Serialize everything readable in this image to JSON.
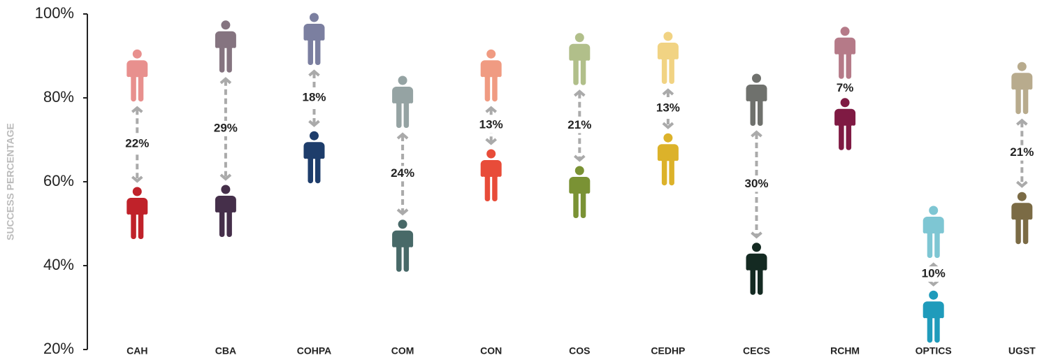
{
  "chart_data": {
    "type": "pictogram-dumbbell",
    "y_label": "SUCCESS PERCENTAGE",
    "categories": [
      "CAH",
      "CBA",
      "COHPA",
      "COM",
      "CON",
      "COS",
      "CEDHP",
      "CECS",
      "RCHM",
      "OPTICS",
      "UGST"
    ],
    "series": [
      {
        "values": [
          85.3,
          92.2,
          94,
          79,
          85.3,
          89.2,
          89.5,
          79.5,
          90.7,
          48,
          82.3
        ],
        "colors": [
          "#e8908e",
          "#857480",
          "#7b7fa0",
          "#95a3a3",
          "#f09b82",
          "#b1bf8a",
          "#f1d383",
          "#6f716d",
          "#b57a88",
          "#7ec6d3",
          "#b8ab8d"
        ]
      },
      {
        "values": [
          52.5,
          53,
          65.8,
          44.7,
          61.5,
          57.5,
          65.3,
          39.2,
          73.7,
          27.8,
          51.3
        ],
        "colors": [
          "#c0222a",
          "#452f4a",
          "#1e3d6b",
          "#486968",
          "#e84c39",
          "#7a9234",
          "#dcb22a",
          "#142a22",
          "#7f1a43",
          "#1f9bbb",
          "#7b6b45"
        ]
      }
    ],
    "gap_labels": [
      "22%",
      "29%",
      "18%",
      "24%",
      "13%",
      "21%",
      "13%",
      "30%",
      "7%",
      "10%",
      "21%"
    ],
    "ylim": [
      20,
      100
    ],
    "yticks": [
      {
        "value": 20,
        "label": "20%"
      },
      {
        "value": 40,
        "label": "40%"
      },
      {
        "value": 60,
        "label": "60%"
      },
      {
        "value": 80,
        "label": "80%"
      },
      {
        "value": 100,
        "label": "100%"
      }
    ],
    "arrow_color": "#aaaaaa"
  }
}
